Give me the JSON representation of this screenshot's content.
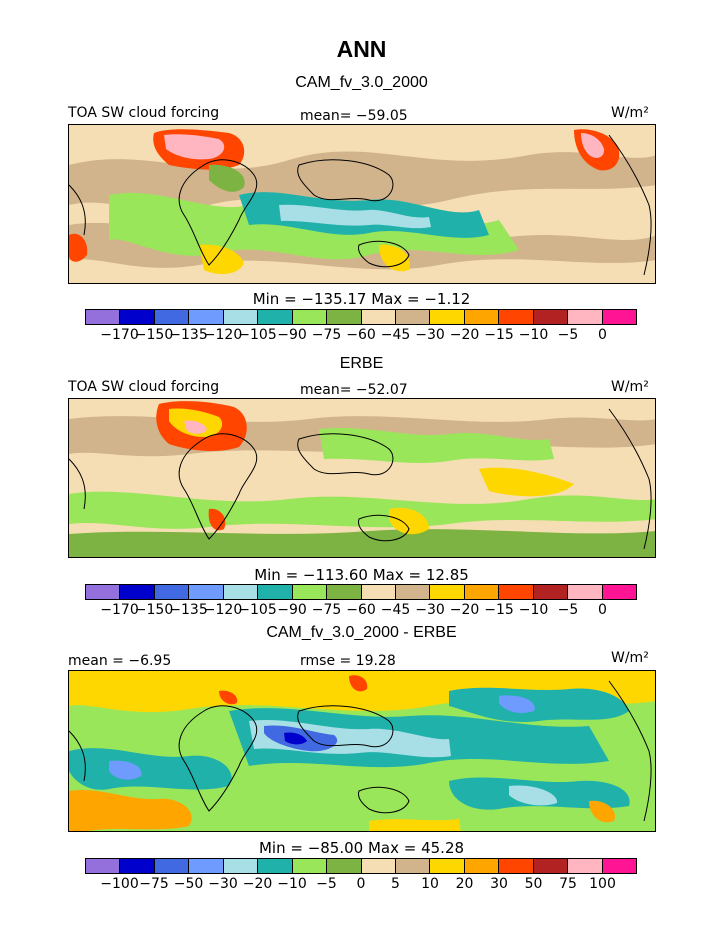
{
  "title": "ANN",
  "panels": [
    {
      "title": "CAM_fv_3.0_2000",
      "left_label": "TOA SW cloud forcing",
      "center_label": "mean= −59.05",
      "units": "W/m²",
      "minmax": "Min = −135.17 Max =  −1.12"
    },
    {
      "title": "ERBE",
      "left_label": "TOA SW cloud forcing",
      "center_label": "mean= −52.07",
      "units": "W/m²",
      "minmax": "Min = −113.60 Max =  12.85"
    },
    {
      "title": "CAM_fv_3.0_2000 - ERBE",
      "left_label": "mean =  −6.95",
      "center_label": "rmse =  19.28",
      "units": "W/m²",
      "minmax": "Min = −85.00 Max =  45.28"
    }
  ],
  "colorbar_colors": [
    "#9370db",
    "#0000cd",
    "#4169e1",
    "#6f9bff",
    "#a8dfe6",
    "#20b2aa",
    "#9ae65a",
    "#7cb342",
    "#f5deb3",
    "#d2b48c",
    "#ffd700",
    "#ffa500",
    "#ff4500",
    "#b22222",
    "#ffb6c1",
    "#ff1493"
  ],
  "colorbar_ticks_field": [
    "−170",
    "−150",
    "−135",
    "−120",
    "−105",
    "−90",
    "−75",
    "−60",
    "−45",
    "−30",
    "−20",
    "−15",
    "−10",
    "−5",
    "0"
  ],
  "colorbar_ticks_diff": [
    "−100",
    "−75",
    "−50",
    "−30",
    "−20",
    "−10",
    "−5",
    "0",
    "5",
    "10",
    "20",
    "30",
    "50",
    "75",
    "100"
  ],
  "chart_data": [
    {
      "type": "heatmap",
      "title": "CAM_fv_3.0_2000",
      "variable": "TOA SW cloud forcing",
      "units": "W/m2",
      "mean": -59.05,
      "min": -135.17,
      "max": -1.12,
      "levels": [
        -170,
        -150,
        -135,
        -120,
        -105,
        -90,
        -75,
        -60,
        -45,
        -30,
        -20,
        -15,
        -10,
        -5,
        0
      ]
    },
    {
      "type": "heatmap",
      "title": "ERBE",
      "variable": "TOA SW cloud forcing",
      "units": "W/m2",
      "mean": -52.07,
      "min": -113.6,
      "max": 12.85,
      "levels": [
        -170,
        -150,
        -135,
        -120,
        -105,
        -90,
        -75,
        -60,
        -45,
        -30,
        -20,
        -15,
        -10,
        -5,
        0
      ]
    },
    {
      "type": "heatmap",
      "title": "CAM_fv_3.0_2000 - ERBE",
      "units": "W/m2",
      "mean": -6.95,
      "rmse": 19.28,
      "min": -85.0,
      "max": 45.28,
      "levels": [
        -100,
        -75,
        -50,
        -30,
        -20,
        -10,
        -5,
        0,
        5,
        10,
        20,
        30,
        50,
        75,
        100
      ]
    }
  ]
}
